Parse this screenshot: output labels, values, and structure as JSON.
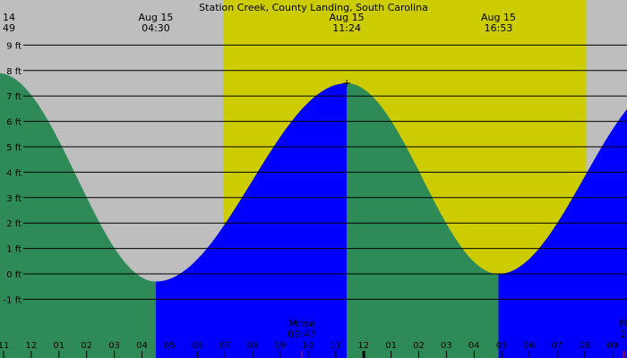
{
  "chart_data": {
    "type": "area",
    "title": "Station Creek, County Landing, South Carolina",
    "ylim": [
      -2.0,
      9.5
    ],
    "y_ticks": [
      {
        "value": 9,
        "label": "9 ft"
      },
      {
        "value": 8,
        "label": "8 ft"
      },
      {
        "value": 7,
        "label": "7 ft"
      },
      {
        "value": 6,
        "label": "6 ft"
      },
      {
        "value": 5,
        "label": "5 ft"
      },
      {
        "value": 4,
        "label": "4 ft"
      },
      {
        "value": 3,
        "label": "3 ft"
      },
      {
        "value": 2,
        "label": "2 ft"
      },
      {
        "value": 1,
        "label": "1 ft"
      },
      {
        "value": 0,
        "label": "0 ft"
      },
      {
        "value": -1,
        "label": "-1 ft"
      }
    ],
    "x_hours": [
      11,
      12,
      1,
      2,
      3,
      4,
      5,
      6,
      7,
      8,
      9,
      10,
      11,
      12,
      1,
      2,
      3,
      4,
      5,
      6,
      7,
      8,
      9
    ],
    "x_tick_labels": [
      "11",
      "12",
      "01",
      "02",
      "03",
      "04",
      "05",
      "06",
      "07",
      "08",
      "09",
      "10",
      "11",
      "12",
      "01",
      "02",
      "03",
      "04",
      "05",
      "06",
      "07",
      "08",
      "09"
    ],
    "x_start_hour": -1.0,
    "x_end_hour": 21.6,
    "tide_extremes": [
      {
        "date": "14",
        "time": "49",
        "clock_hour": -1.2,
        "height": 7.9,
        "type": "high"
      },
      {
        "date": "Aug 15",
        "time": "04:30",
        "clock_hour": 4.5,
        "height": -0.3,
        "type": "low"
      },
      {
        "date": "Aug 15",
        "time": "11:24",
        "clock_hour": 11.4,
        "height": 7.5,
        "type": "high"
      },
      {
        "date": "Aug 15",
        "time": "16:53",
        "clock_hour": 16.88,
        "height": 0.0,
        "type": "low"
      }
    ],
    "daylight": {
      "start_hour": 6.95,
      "end_hour": 20.05
    },
    "moon_events": [
      {
        "label": "Mrise",
        "time": "09:47",
        "clock_hour": 9.78
      },
      {
        "label": "M",
        "time": "2",
        "clock_hour": 21.4
      }
    ],
    "colors": {
      "night": "#bebebe",
      "day": "#cccc00",
      "rising": "#0000ff",
      "falling": "#2e8b57",
      "grid": "#000000",
      "moon_marker": "#ff0000"
    }
  }
}
